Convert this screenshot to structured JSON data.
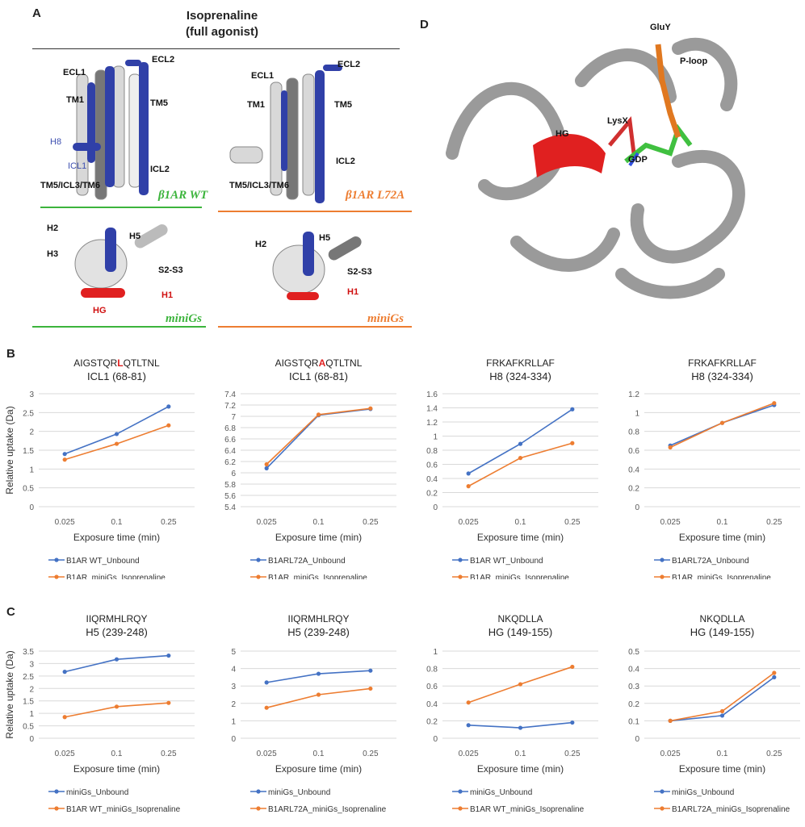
{
  "colors": {
    "blue": "#4472c4",
    "orange": "#ed7d31",
    "grid": "#d9d9d9",
    "tick": "#595959",
    "green": "#3cb43c",
    "red": "#e02020",
    "ribbon_blue": "#3040a8"
  },
  "panelA": {
    "letter": "A",
    "title_line1": "Isoprenaline",
    "title_line2": "(full agonist)",
    "wt_receptor": {
      "tag": "β1AR WT",
      "labels": {
        "ecl1": "ECL1",
        "ecl2": "ECL2",
        "tm1": "TM1",
        "tm5": "TM5",
        "h8": "H8",
        "icl1": "ICL1",
        "icl2": "ICL2",
        "tm5icl3tm6": "TM5/ICL3/TM6"
      }
    },
    "mut_receptor": {
      "tag": "β1AR L72A",
      "labels": {
        "ecl1": "ECL1",
        "ecl2": "ECL2",
        "tm1": "TM1",
        "tm5": "TM5",
        "icl2": "ICL2",
        "tm5icl3tm6": "TM5/ICL3/TM6"
      }
    },
    "wt_minigs": {
      "tag": "miniGs",
      "labels": {
        "h2": "H2",
        "h3": "H3",
        "h5": "H5",
        "s2s3": "S2-S3",
        "h1": "H1",
        "hg": "HG"
      }
    },
    "mut_minigs": {
      "tag": "miniGs",
      "labels": {
        "h2": "H2",
        "h5": "H5",
        "s2s3": "S2-S3",
        "h1": "H1"
      }
    }
  },
  "panelD": {
    "letter": "D",
    "labels": {
      "gluy": "GluY",
      "ploop": "P-loop",
      "lysx": "LysX",
      "hg": "HG",
      "gdp": "GDP"
    }
  },
  "panelB": {
    "letter": "B"
  },
  "panelC": {
    "letter": "C"
  },
  "chart_data": [
    {
      "type": "line",
      "panel": "B",
      "title_parts": [
        "AIGSTQR",
        "L",
        "QTLTNL"
      ],
      "title_highlight": 1,
      "subtitle": "ICL1 (68-81)",
      "ylabel": "Relative uptake (Da)",
      "xlabel": "Exposure time (min)",
      "categories": [
        "0.025",
        "0.1",
        "0.25"
      ],
      "ylim": [
        0,
        3
      ],
      "ystep": 0.5,
      "yticks": [
        "0",
        "0.5",
        "1",
        "1.5",
        "2",
        "2.5",
        "3"
      ],
      "grid": true,
      "legend": "bottom",
      "series": [
        {
          "name": "B1AR WT_Unbound",
          "color": "blue",
          "values": [
            1.4,
            1.93,
            2.66
          ]
        },
        {
          "name": "B1AR_miniGs_Isoprenaline",
          "color": "orange",
          "values": [
            1.25,
            1.67,
            2.16
          ]
        }
      ]
    },
    {
      "type": "line",
      "panel": "B",
      "title_parts": [
        "AIGSTQR",
        "A",
        "QTLTNL"
      ],
      "title_highlight": 1,
      "subtitle": "ICL1 (68-81)",
      "ylabel": "",
      "xlabel": "Exposure time (min)",
      "categories": [
        "0.025",
        "0.1",
        "0.25"
      ],
      "ylim": [
        5.4,
        7.4
      ],
      "ystep": 0.2,
      "yticks": [
        "5.4",
        "5.6",
        "5.8",
        "6",
        "6.2",
        "6.4",
        "6.6",
        "6.8",
        "7",
        "7.2",
        "7.4"
      ],
      "grid": true,
      "legend": "bottom",
      "series": [
        {
          "name": "B1ARL72A_Unbound",
          "color": "blue",
          "values": [
            6.08,
            7.02,
            7.13
          ]
        },
        {
          "name": "B1AR_miniGs_Isoprenaline",
          "color": "orange",
          "values": [
            6.15,
            7.03,
            7.14
          ]
        }
      ]
    },
    {
      "type": "line",
      "panel": "B",
      "title_parts": [
        "FRKAFKRLLAF"
      ],
      "title_highlight": -1,
      "subtitle": "H8 (324-334)",
      "ylabel": "",
      "xlabel": "Exposure time (min)",
      "categories": [
        "0.025",
        "0.1",
        "0.25"
      ],
      "ylim": [
        0,
        1.6
      ],
      "ystep": 0.2,
      "yticks": [
        "0",
        "0.2",
        "0.4",
        "0.6",
        "0.8",
        "1",
        "1.2",
        "1.4",
        "1.6"
      ],
      "grid": true,
      "legend": "bottom",
      "series": [
        {
          "name": "B1AR WT_Unbound",
          "color": "blue",
          "values": [
            0.47,
            0.89,
            1.38
          ]
        },
        {
          "name": "B1AR_miniGs_Isoprenaline",
          "color": "orange",
          "values": [
            0.29,
            0.69,
            0.9
          ]
        }
      ]
    },
    {
      "type": "line",
      "panel": "B",
      "title_parts": [
        "FRKAFKRLLAF"
      ],
      "title_highlight": -1,
      "subtitle": "H8 (324-334)",
      "ylabel": "",
      "xlabel": "Exposure time (min)",
      "categories": [
        "0.025",
        "0.1",
        "0.25"
      ],
      "ylim": [
        0,
        1.2
      ],
      "ystep": 0.2,
      "yticks": [
        "0",
        "0.2",
        "0.4",
        "0.6",
        "0.8",
        "1",
        "1.2"
      ],
      "grid": true,
      "legend": "bottom",
      "series": [
        {
          "name": "B1ARL72A_Unbound",
          "color": "blue",
          "values": [
            0.65,
            0.89,
            1.08
          ]
        },
        {
          "name": "B1AR_miniGs_Isoprenaline",
          "color": "orange",
          "values": [
            0.63,
            0.89,
            1.1
          ]
        }
      ]
    },
    {
      "type": "line",
      "panel": "C",
      "title_parts": [
        "IIQRMHLRQY"
      ],
      "title_highlight": -1,
      "subtitle": "H5 (239-248)",
      "ylabel": "Relative uptake (Da)",
      "xlabel": "Exposure time (min)",
      "categories": [
        "0.025",
        "0.1",
        "0.25"
      ],
      "ylim": [
        0,
        3.5
      ],
      "ystep": 0.5,
      "yticks": [
        "0",
        "0.5",
        "1",
        "1.5",
        "2",
        "2.5",
        "3",
        "3.5"
      ],
      "grid": true,
      "legend": "bottom",
      "series": [
        {
          "name": "miniGs_Unbound",
          "color": "blue",
          "values": [
            2.67,
            3.17,
            3.32
          ]
        },
        {
          "name": "B1AR WT_miniGs_Isoprenaline",
          "color": "orange",
          "values": [
            0.85,
            1.27,
            1.42
          ]
        }
      ]
    },
    {
      "type": "line",
      "panel": "C",
      "title_parts": [
        "IIQRMHLRQY"
      ],
      "title_highlight": -1,
      "subtitle": "H5 (239-248)",
      "ylabel": "",
      "xlabel": "Exposure time (min)",
      "categories": [
        "0.025",
        "0.1",
        "0.25"
      ],
      "ylim": [
        0,
        5
      ],
      "ystep": 1,
      "yticks": [
        "0",
        "1",
        "2",
        "3",
        "4",
        "5"
      ],
      "grid": true,
      "legend": "bottom",
      "series": [
        {
          "name": "miniGs_Unbound",
          "color": "blue",
          "values": [
            3.2,
            3.7,
            3.88
          ]
        },
        {
          "name": "B1ARL72A_miniGs_Isoprenaline",
          "color": "orange",
          "values": [
            1.75,
            2.5,
            2.85
          ]
        }
      ]
    },
    {
      "type": "line",
      "panel": "C",
      "title_parts": [
        "NKQDLLA"
      ],
      "title_highlight": -1,
      "subtitle": "HG (149-155)",
      "ylabel": "",
      "xlabel": "Exposure time (min)",
      "categories": [
        "0.025",
        "0.1",
        "0.25"
      ],
      "ylim": [
        0,
        1
      ],
      "ystep": 0.2,
      "yticks": [
        "0",
        "0.2",
        "0.4",
        "0.6",
        "0.8",
        "1"
      ],
      "grid": true,
      "legend": "bottom",
      "series": [
        {
          "name": "miniGs_Unbound",
          "color": "blue",
          "values": [
            0.15,
            0.12,
            0.18
          ]
        },
        {
          "name": "B1AR WT_miniGs_Isoprenaline",
          "color": "orange",
          "values": [
            0.41,
            0.62,
            0.82
          ]
        }
      ]
    },
    {
      "type": "line",
      "panel": "C",
      "title_parts": [
        "NKQDLLA"
      ],
      "title_highlight": -1,
      "subtitle": "HG (149-155)",
      "ylabel": "",
      "xlabel": "Exposure time (min)",
      "categories": [
        "0.025",
        "0.1",
        "0.25"
      ],
      "ylim": [
        0,
        0.5
      ],
      "ystep": 0.1,
      "yticks": [
        "0",
        "0.1",
        "0.2",
        "0.3",
        "0.4",
        "0.5"
      ],
      "grid": true,
      "legend": "bottom",
      "series": [
        {
          "name": "miniGs_Unbound",
          "color": "blue",
          "values": [
            0.1,
            0.13,
            0.35
          ]
        },
        {
          "name": "B1ARL72A_miniGs_Isoprenaline",
          "color": "orange",
          "values": [
            0.1,
            0.155,
            0.375
          ]
        }
      ]
    }
  ]
}
